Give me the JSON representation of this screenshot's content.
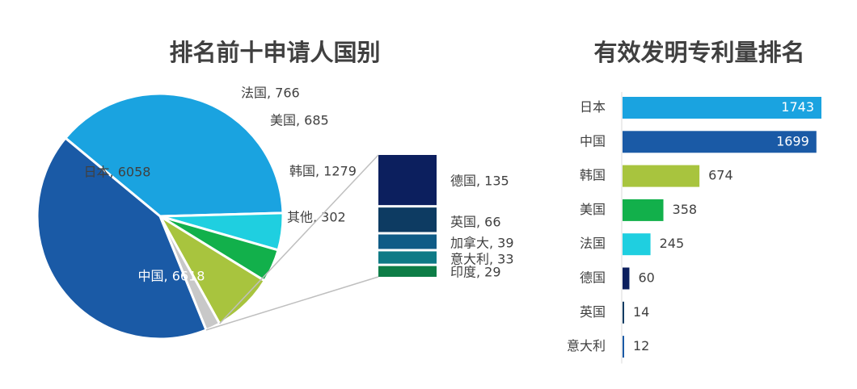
{
  "chart_data": [
    {
      "type": "pie",
      "title": "排名前十申请人国别",
      "slices": [
        {
          "label": "日本",
          "value": 6058,
          "text": "日本, 6058",
          "color": "#1aa3e0"
        },
        {
          "label": "法国",
          "value": 766,
          "text": "法国, 766",
          "color": "#1fcfe0"
        },
        {
          "label": "美国",
          "value": 685,
          "text": "美国, 685",
          "color": "#12b04b"
        },
        {
          "label": "韩国",
          "value": 1279,
          "text": "韩国, 1279",
          "color": "#a8c43e"
        },
        {
          "label": "其他",
          "value": 302,
          "text": "其他, 302",
          "color": "#c8c8c8"
        },
        {
          "label": "中国",
          "value": 6618,
          "text": "中国, 6618",
          "color": "#1a5aa6"
        }
      ],
      "breakdown_of": "其他",
      "breakdown": [
        {
          "label": "德国",
          "value": 135,
          "text": "德国, 135",
          "color": "#0c1f5e"
        },
        {
          "label": "英国",
          "value": 66,
          "text": "英国, 66",
          "color": "#0d3b62"
        },
        {
          "label": "加拿大",
          "value": 39,
          "text": "加拿大, 39",
          "color": "#0f5b86"
        },
        {
          "label": "意大利",
          "value": 33,
          "text": "意大利, 33",
          "color": "#0e7a86"
        },
        {
          "label": "印度",
          "value": 29,
          "text": "印度, 29",
          "color": "#0d7d47"
        }
      ]
    },
    {
      "type": "bar",
      "orientation": "horizontal",
      "title": "有效发明专利量排名",
      "categories": [
        "日本",
        "中国",
        "韩国",
        "美国",
        "法国",
        "德国",
        "英国",
        "意大利"
      ],
      "values": [
        1743,
        1699,
        674,
        358,
        245,
        60,
        14,
        12
      ],
      "value_labels": [
        "1743",
        "1699",
        "674",
        "358",
        "245",
        "60",
        "14",
        "12"
      ],
      "colors": [
        "#1aa3e0",
        "#1a5aa6",
        "#a8c43e",
        "#12b04b",
        "#1fcfe0",
        "#0c1f5e",
        "#0d3b62",
        "#1a5aa6"
      ]
    }
  ]
}
